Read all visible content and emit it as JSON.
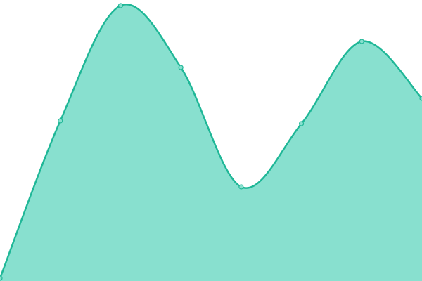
{
  "chart_data": {
    "type": "area",
    "categories": [
      null,
      null,
      null,
      null,
      null,
      null,
      null,
      null
    ],
    "values": [
      4,
      228,
      392,
      304,
      134,
      224,
      341,
      260
    ],
    "color": "#1fb797",
    "fill": "#88e0cf",
    "ylim": [
      0,
      400
    ]
  }
}
